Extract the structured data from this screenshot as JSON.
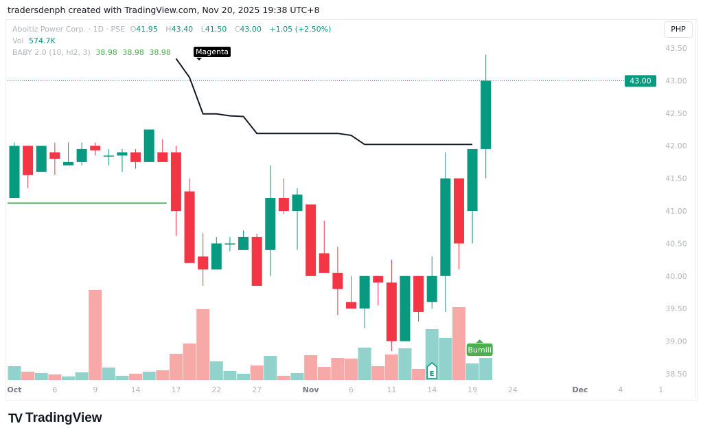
{
  "credit": "tradersdenph created with TradingView.com, Nov 20, 2025 19:38 UTC+8",
  "legend": {
    "symbol": "Aboitiz Power Corp. · 1D · PSE",
    "o_label": "O",
    "o": "41.95",
    "h_label": "H",
    "h": "43.40",
    "l_label": "L",
    "l": "41.50",
    "c_label": "C",
    "c": "43.00",
    "change": "+1.05 (+2.50%)",
    "vol_label": "Vol",
    "vol": "574.7K",
    "indicator": "BABY 2.0 (10, hl2, 3)",
    "ind_values": [
      "38.98",
      "38.98",
      "38.98"
    ]
  },
  "tooltip": "Magenta",
  "currency": "PHP",
  "last_price": "43.00",
  "signal_label": "Bumili",
  "earnings_marker": "E",
  "brand": "TradingView",
  "colors": {
    "up": "#089981",
    "down": "#f23645",
    "up_vol": "#92d2cc",
    "down_vol": "#f7a9a7",
    "baby_line": "#131722",
    "support_line": "#4caf50",
    "signal": "#4caf50"
  },
  "chart_data": {
    "type": "candlestick",
    "ylim": [
      38.4,
      43.6
    ],
    "y_ticks": [
      "43.50",
      "43.00",
      "42.50",
      "42.00",
      "41.50",
      "41.00",
      "40.50",
      "40.00",
      "39.50",
      "39.00",
      "38.50"
    ],
    "x_ticks": [
      {
        "label": "Oct",
        "index": 0,
        "bold": true
      },
      {
        "label": "6",
        "index": 3
      },
      {
        "label": "9",
        "index": 6
      },
      {
        "label": "14",
        "index": 9
      },
      {
        "label": "17",
        "index": 12
      },
      {
        "label": "22",
        "index": 15
      },
      {
        "label": "27",
        "index": 18
      },
      {
        "label": "Nov",
        "index": 22,
        "bold": true
      },
      {
        "label": "6",
        "index": 25
      },
      {
        "label": "11",
        "index": 28
      },
      {
        "label": "14",
        "index": 31
      },
      {
        "label": "19",
        "index": 34
      },
      {
        "label": "24",
        "index": 37
      },
      {
        "label": "Dec",
        "index": 42,
        "bold": true
      },
      {
        "label": "4",
        "index": 45
      },
      {
        "label": "1",
        "index": 48
      }
    ],
    "dates": [
      "Oct 1",
      "Oct 2",
      "Oct 3",
      "Oct 6",
      "Oct 7",
      "Oct 8",
      "Oct 9",
      "Oct 10",
      "Oct 13",
      "Oct 14",
      "Oct 15",
      "Oct 16",
      "Oct 17",
      "Oct 20",
      "Oct 21",
      "Oct 22",
      "Oct 23",
      "Oct 24",
      "Oct 27",
      "Oct 28",
      "Oct 29",
      "Oct 30",
      "Nov 3",
      "Nov 4",
      "Nov 5",
      "Nov 6",
      "Nov 7",
      "Nov 10",
      "Nov 11",
      "Nov 12",
      "Nov 13",
      "Nov 14",
      "Nov 17",
      "Nov 18",
      "Nov 19",
      "Nov 20"
    ],
    "ohlc": [
      [
        41.2,
        42.05,
        41.2,
        42.0
      ],
      [
        42.0,
        42.0,
        41.35,
        41.55
      ],
      [
        41.6,
        42.0,
        41.6,
        42.0
      ],
      [
        41.9,
        42.05,
        41.55,
        41.8
      ],
      [
        41.7,
        42.05,
        41.7,
        41.75
      ],
      [
        41.75,
        42.05,
        41.7,
        41.95
      ],
      [
        42.0,
        42.05,
        41.85,
        41.93
      ],
      [
        41.85,
        41.95,
        41.7,
        41.85
      ],
      [
        41.85,
        41.95,
        41.6,
        41.9
      ],
      [
        41.9,
        41.95,
        41.65,
        41.75
      ],
      [
        41.75,
        42.25,
        41.75,
        42.25
      ],
      [
        41.9,
        42.1,
        41.75,
        41.75
      ],
      [
        41.9,
        42.0,
        40.62,
        41.0
      ],
      [
        41.3,
        41.5,
        40.2,
        40.2
      ],
      [
        40.3,
        40.66,
        39.85,
        40.1
      ],
      [
        40.1,
        40.6,
        40.1,
        40.5
      ],
      [
        40.5,
        40.6,
        40.38,
        40.5
      ],
      [
        40.4,
        40.7,
        40.4,
        40.6
      ],
      [
        40.6,
        40.65,
        39.85,
        39.85
      ],
      [
        40.4,
        41.7,
        40.0,
        41.2
      ],
      [
        41.2,
        41.5,
        40.95,
        41.0
      ],
      [
        41.0,
        41.35,
        40.4,
        41.25
      ],
      [
        41.1,
        41.1,
        40.0,
        40.0
      ],
      [
        40.35,
        40.85,
        40.05,
        40.05
      ],
      [
        40.05,
        40.45,
        39.4,
        39.8
      ],
      [
        39.6,
        40.0,
        39.5,
        39.5
      ],
      [
        39.5,
        40.0,
        39.2,
        40.0
      ],
      [
        40.0,
        40.0,
        39.55,
        39.9
      ],
      [
        39.9,
        40.25,
        38.85,
        39.0
      ],
      [
        39.0,
        40.0,
        39.0,
        40.0
      ],
      [
        40.0,
        40.0,
        39.3,
        39.45
      ],
      [
        39.6,
        40.3,
        39.5,
        40.0
      ],
      [
        40.0,
        41.9,
        39.45,
        41.5
      ],
      [
        41.5,
        41.5,
        40.1,
        40.5
      ],
      [
        41.0,
        41.95,
        40.5,
        41.95
      ],
      [
        41.95,
        43.4,
        41.5,
        43.0
      ]
    ],
    "volume_k": [
      360,
      216,
      180,
      144,
      90,
      198,
      2360,
      324,
      108,
      162,
      216,
      252,
      684,
      954,
      1854,
      486,
      234,
      162,
      378,
      630,
      108,
      180,
      648,
      342,
      576,
      558,
      846,
      360,
      666,
      828,
      288,
      1332,
      1098,
      1908,
      432,
      574.7
    ],
    "baby_line": [
      {
        "index": 12,
        "value": 43.34
      },
      {
        "index": 13,
        "value": 43.05
      },
      {
        "index": 14,
        "value": 42.49
      },
      {
        "index": 15,
        "value": 42.49
      },
      {
        "index": 16,
        "value": 42.46
      },
      {
        "index": 17,
        "value": 42.45
      },
      {
        "index": 18,
        "value": 42.19
      },
      {
        "index": 24,
        "value": 42.19
      },
      {
        "index": 25,
        "value": 42.16
      },
      {
        "index": 26,
        "value": 42.02
      },
      {
        "index": 34,
        "value": 42.02
      }
    ],
    "support_line": {
      "from_index": 0,
      "to_index": 11,
      "value": 41.12
    },
    "earnings_index": 31,
    "signal_index": 35,
    "grid": false
  }
}
